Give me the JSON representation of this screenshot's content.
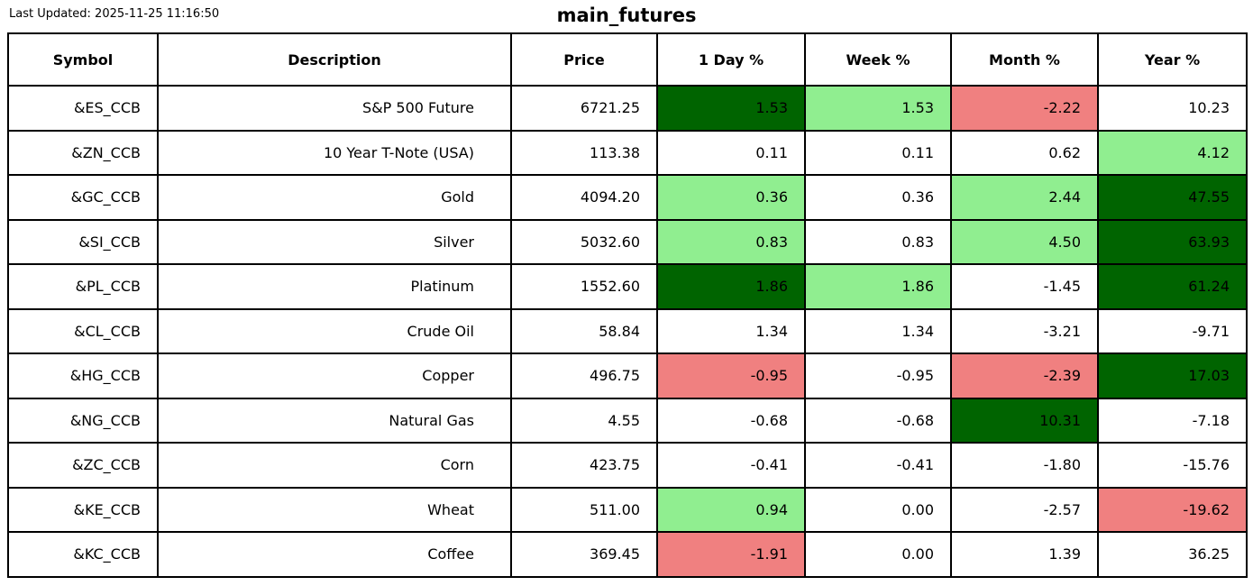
{
  "meta": {
    "last_updated": "Last Updated: 2025-11-25 11:16:50",
    "title": "main_futures"
  },
  "colors": {
    "strong_up": "#006400",
    "up": "#90EE90",
    "down": "#F08080",
    "neutral": "#FFFFFF",
    "border": "#000000",
    "text": "#000000"
  },
  "table": {
    "columns": [
      "Symbol",
      "Description",
      "Price",
      "1 Day %",
      "Week %",
      "Month %",
      "Year %"
    ],
    "rows": [
      {
        "symbol": "&ES_CCB",
        "description": "S&P 500 Future",
        "price": "6721.25",
        "pcts": [
          {
            "value": "1.53",
            "color": "strong_up"
          },
          {
            "value": "1.53",
            "color": "up"
          },
          {
            "value": "-2.22",
            "color": "down"
          },
          {
            "value": "10.23",
            "color": "neutral"
          }
        ]
      },
      {
        "symbol": "&ZN_CCB",
        "description": "10 Year T-Note (USA)",
        "price": "113.38",
        "pcts": [
          {
            "value": "0.11",
            "color": "neutral"
          },
          {
            "value": "0.11",
            "color": "neutral"
          },
          {
            "value": "0.62",
            "color": "neutral"
          },
          {
            "value": "4.12",
            "color": "up"
          }
        ]
      },
      {
        "symbol": "&GC_CCB",
        "description": "Gold",
        "price": "4094.20",
        "pcts": [
          {
            "value": "0.36",
            "color": "up"
          },
          {
            "value": "0.36",
            "color": "neutral"
          },
          {
            "value": "2.44",
            "color": "up"
          },
          {
            "value": "47.55",
            "color": "strong_up"
          }
        ]
      },
      {
        "symbol": "&SI_CCB",
        "description": "Silver",
        "price": "5032.60",
        "pcts": [
          {
            "value": "0.83",
            "color": "up"
          },
          {
            "value": "0.83",
            "color": "neutral"
          },
          {
            "value": "4.50",
            "color": "up"
          },
          {
            "value": "63.93",
            "color": "strong_up"
          }
        ]
      },
      {
        "symbol": "&PL_CCB",
        "description": "Platinum",
        "price": "1552.60",
        "pcts": [
          {
            "value": "1.86",
            "color": "strong_up"
          },
          {
            "value": "1.86",
            "color": "up"
          },
          {
            "value": "-1.45",
            "color": "neutral"
          },
          {
            "value": "61.24",
            "color": "strong_up"
          }
        ]
      },
      {
        "symbol": "&CL_CCB",
        "description": "Crude Oil",
        "price": "58.84",
        "pcts": [
          {
            "value": "1.34",
            "color": "neutral"
          },
          {
            "value": "1.34",
            "color": "neutral"
          },
          {
            "value": "-3.21",
            "color": "neutral"
          },
          {
            "value": "-9.71",
            "color": "neutral"
          }
        ]
      },
      {
        "symbol": "&HG_CCB",
        "description": "Copper",
        "price": "496.75",
        "pcts": [
          {
            "value": "-0.95",
            "color": "down"
          },
          {
            "value": "-0.95",
            "color": "neutral"
          },
          {
            "value": "-2.39",
            "color": "down"
          },
          {
            "value": "17.03",
            "color": "strong_up"
          }
        ]
      },
      {
        "symbol": "&NG_CCB",
        "description": "Natural Gas",
        "price": "4.55",
        "pcts": [
          {
            "value": "-0.68",
            "color": "neutral"
          },
          {
            "value": "-0.68",
            "color": "neutral"
          },
          {
            "value": "10.31",
            "color": "strong_up"
          },
          {
            "value": "-7.18",
            "color": "neutral"
          }
        ]
      },
      {
        "symbol": "&ZC_CCB",
        "description": "Corn",
        "price": "423.75",
        "pcts": [
          {
            "value": "-0.41",
            "color": "neutral"
          },
          {
            "value": "-0.41",
            "color": "neutral"
          },
          {
            "value": "-1.80",
            "color": "neutral"
          },
          {
            "value": "-15.76",
            "color": "neutral"
          }
        ]
      },
      {
        "symbol": "&KE_CCB",
        "description": "Wheat",
        "price": "511.00",
        "pcts": [
          {
            "value": "0.94",
            "color": "up"
          },
          {
            "value": "0.00",
            "color": "neutral"
          },
          {
            "value": "-2.57",
            "color": "neutral"
          },
          {
            "value": "-19.62",
            "color": "down"
          }
        ]
      },
      {
        "symbol": "&KC_CCB",
        "description": "Coffee",
        "price": "369.45",
        "pcts": [
          {
            "value": "-1.91",
            "color": "down"
          },
          {
            "value": "0.00",
            "color": "neutral"
          },
          {
            "value": "1.39",
            "color": "neutral"
          },
          {
            "value": "36.25",
            "color": "neutral"
          }
        ]
      }
    ]
  }
}
